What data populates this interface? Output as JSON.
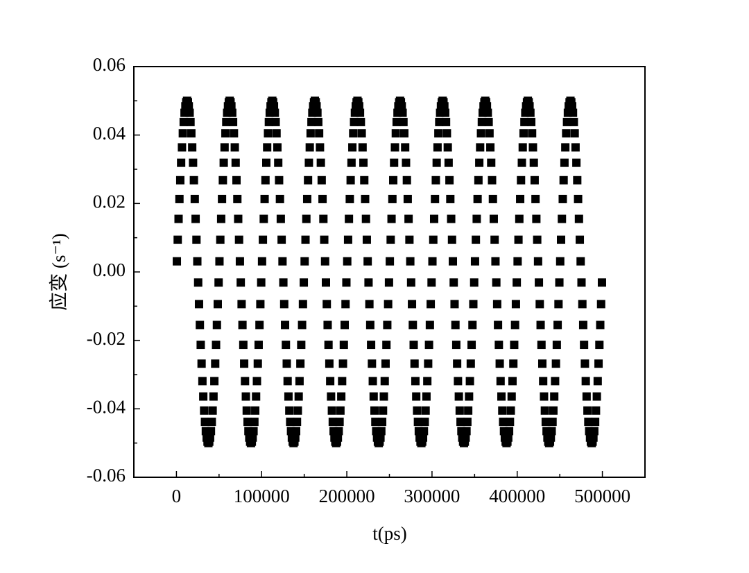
{
  "chart_data": {
    "type": "scatter",
    "x_label": "t(ps)",
    "y_label": "应变 (s⁻¹)",
    "xlim": [
      -50000,
      550000
    ],
    "ylim": [
      -0.06,
      0.06
    ],
    "xticks": [
      0,
      100000,
      200000,
      300000,
      400000,
      500000
    ],
    "yticks": [
      -0.06,
      -0.04,
      -0.02,
      {
        "value": 0,
        "label": "0.00"
      },
      0.02,
      0.04,
      0.06
    ],
    "xminorticks": [
      50000,
      150000,
      250000,
      350000,
      450000
    ],
    "yminorticks": [
      -0.05,
      -0.03,
      -0.01,
      0.01,
      0.03,
      0.05
    ],
    "series": [
      {
        "color": "#000000",
        "x": [
          500,
          1500,
          2500,
          3500,
          4500,
          5500,
          6500,
          7500,
          8500,
          9500,
          10500,
          11500,
          12500,
          13500,
          14500,
          15500,
          16500,
          17500,
          18500,
          19500,
          20500,
          21500,
          22500,
          23500,
          24500,
          25500,
          26500,
          27500,
          28500,
          29500,
          30500,
          31500,
          32500,
          33500,
          34500,
          35500,
          36500,
          37500,
          38500,
          39500,
          40500,
          41500,
          42500,
          43500,
          44500,
          45500,
          46500,
          47500,
          48500,
          49500,
          50500,
          51500,
          52500,
          53500,
          54500,
          55500,
          56500,
          57500,
          58500,
          59500,
          60500,
          61500,
          62500,
          63500,
          64500,
          65500,
          66500,
          67500,
          68500,
          69500,
          70500,
          71500,
          72500,
          73500,
          74500,
          75500,
          76500,
          77500,
          78500,
          79500,
          80500,
          81500,
          82500,
          83500,
          84500,
          85500,
          86500,
          87500,
          88500,
          89500,
          90500,
          91500,
          92500,
          93500,
          94500,
          95500,
          96500,
          97500,
          98500,
          99500,
          100500,
          101500,
          102500,
          103500,
          104500,
          105500,
          106500,
          107500,
          108500,
          109500,
          110500,
          111500,
          112500,
          113500,
          114500,
          115500,
          116500,
          117500,
          118500,
          119500,
          120500,
          121500,
          122500,
          123500,
          124500,
          125500,
          126500,
          127500,
          128500,
          129500,
          130500,
          131500,
          132500,
          133500,
          134500,
          135500,
          136500,
          137500,
          138500,
          139500,
          140500,
          141500,
          142500,
          143500,
          144500,
          145500,
          146500,
          147500,
          148500,
          149500,
          150500,
          151500,
          152500,
          153500,
          154500,
          155500,
          156500,
          157500,
          158500,
          159500,
          160500,
          161500,
          162500,
          163500,
          164500,
          165500,
          166500,
          167500,
          168500,
          169500,
          170500,
          171500,
          172500,
          173500,
          174500,
          175500,
          176500,
          177500,
          178500,
          179500,
          180500,
          181500,
          182500,
          183500,
          184500,
          185500,
          186500,
          187500,
          188500,
          189500,
          190500,
          191500,
          192500,
          193500,
          194500,
          195500,
          196500,
          197500,
          198500,
          199500,
          200500,
          201500,
          202500,
          203500,
          204500,
          205500,
          206500,
          207500,
          208500,
          209500,
          210500,
          211500,
          212500,
          213500,
          214500,
          215500,
          216500,
          217500,
          218500,
          219500,
          220500,
          221500,
          222500,
          223500,
          224500,
          225500,
          226500,
          227500,
          228500,
          229500,
          230500,
          231500,
          232500,
          233500,
          234500,
          235500,
          236500,
          237500,
          238500,
          239500,
          240500,
          241500,
          242500,
          243500,
          244500,
          245500,
          246500,
          247500,
          248500,
          249500,
          250500,
          251500,
          252500,
          253500,
          254500,
          255500,
          256500,
          257500,
          258500,
          259500,
          260500,
          261500,
          262500,
          263500,
          264500,
          265500,
          266500,
          267500,
          268500,
          269500,
          270500,
          271500,
          272500,
          273500,
          274500,
          275500,
          276500,
          277500,
          278500,
          279500,
          280500,
          281500,
          282500,
          283500,
          284500,
          285500,
          286500,
          287500,
          288500,
          289500,
          290500,
          291500,
          292500,
          293500,
          294500,
          295500,
          296500,
          297500,
          298500,
          299500,
          300500,
          301500,
          302500,
          303500,
          304500,
          305500,
          306500,
          307500,
          308500,
          309500,
          310500,
          311500,
          312500,
          313500,
          314500,
          315500,
          316500,
          317500,
          318500,
          319500,
          320500,
          321500,
          322500,
          323500,
          324500,
          325500,
          326500,
          327500,
          328500,
          329500,
          330500,
          331500,
          332500,
          333500,
          334500,
          335500,
          336500,
          337500,
          338500,
          339500,
          340500,
          341500,
          342500,
          343500,
          344500,
          345500,
          346500,
          347500,
          348500,
          349500,
          350500,
          351500,
          352500,
          353500,
          354500,
          355500,
          356500,
          357500,
          358500,
          359500,
          360500,
          361500,
          362500,
          363500,
          364500,
          365500,
          366500,
          367500,
          368500,
          369500,
          370500,
          371500,
          372500,
          373500,
          374500,
          375500,
          376500,
          377500,
          378500,
          379500,
          380500,
          381500,
          382500,
          383500,
          384500,
          385500,
          386500,
          387500,
          388500,
          389500,
          390500,
          391500,
          392500,
          393500,
          394500,
          395500,
          396500,
          397500,
          398500,
          399500,
          400500,
          401500,
          402500,
          403500,
          404500,
          405500,
          406500,
          407500,
          408500,
          409500,
          410500,
          411500,
          412500,
          413500,
          414500,
          415500,
          416500,
          417500,
          418500,
          419500,
          420500,
          421500,
          422500,
          423500,
          424500,
          425500,
          426500,
          427500,
          428500,
          429500,
          430500,
          431500,
          432500,
          433500,
          434500,
          435500,
          436500,
          437500,
          438500,
          439500,
          440500,
          441500,
          442500,
          443500,
          444500,
          445500,
          446500,
          447500,
          448500,
          449500,
          450500,
          451500,
          452500,
          453500,
          454500,
          455500,
          456500,
          457500,
          458500,
          459500,
          460500,
          461500,
          462500,
          463500,
          464500,
          465500,
          466500,
          467500,
          468500,
          469500,
          470500,
          471500,
          472500,
          473500,
          474500,
          475500,
          476500,
          477500,
          478500,
          479500,
          480500,
          481500,
          482500,
          483500,
          484500,
          485500,
          486500,
          487500,
          488500,
          489500,
          490500,
          491500,
          492500,
          493500,
          494500,
          495500,
          496500,
          497500,
          498500,
          499500
        ],
        "values": [
          0.0031,
          0.0094,
          0.0155,
          0.0213,
          0.0268,
          0.0319,
          0.0364,
          0.0405,
          0.0438,
          0.0465,
          0.0484,
          0.0496,
          0.05,
          0.0496,
          0.0484,
          0.0465,
          0.0438,
          0.0405,
          0.0364,
          0.0319,
          0.0268,
          0.0213,
          0.0155,
          0.0094,
          0.0031,
          -0.0031,
          -0.0094,
          -0.0155,
          -0.0213,
          -0.0268,
          -0.0319,
          -0.0364,
          -0.0405,
          -0.0438,
          -0.0465,
          -0.0484,
          -0.0496,
          -0.05,
          -0.0496,
          -0.0484,
          -0.0465,
          -0.0438,
          -0.0405,
          -0.0364,
          -0.0319,
          -0.0268,
          -0.0213,
          -0.0155,
          -0.0094,
          -0.0031,
          0.0031,
          0.0094,
          0.0155,
          0.0213,
          0.0268,
          0.0319,
          0.0364,
          0.0405,
          0.0438,
          0.0465,
          0.0484,
          0.0496,
          0.05,
          0.0496,
          0.0484,
          0.0465,
          0.0438,
          0.0405,
          0.0364,
          0.0319,
          0.0268,
          0.0213,
          0.0155,
          0.0094,
          0.0031,
          -0.0031,
          -0.0094,
          -0.0155,
          -0.0213,
          -0.0268,
          -0.0319,
          -0.0364,
          -0.0405,
          -0.0438,
          -0.0465,
          -0.0484,
          -0.0496,
          -0.05,
          -0.0496,
          -0.0484,
          -0.0465,
          -0.0438,
          -0.0405,
          -0.0364,
          -0.0319,
          -0.0268,
          -0.0213,
          -0.0155,
          -0.0094,
          -0.0031,
          0.0031,
          0.0094,
          0.0155,
          0.0213,
          0.0268,
          0.0319,
          0.0364,
          0.0405,
          0.0438,
          0.0465,
          0.0484,
          0.0496,
          0.05,
          0.0496,
          0.0484,
          0.0465,
          0.0438,
          0.0405,
          0.0364,
          0.0319,
          0.0268,
          0.0213,
          0.0155,
          0.0094,
          0.0031,
          -0.0031,
          -0.0094,
          -0.0155,
          -0.0213,
          -0.0268,
          -0.0319,
          -0.0364,
          -0.0405,
          -0.0438,
          -0.0465,
          -0.0484,
          -0.0496,
          -0.05,
          -0.0496,
          -0.0484,
          -0.0465,
          -0.0438,
          -0.0405,
          -0.0364,
          -0.0319,
          -0.0268,
          -0.0213,
          -0.0155,
          -0.0094,
          -0.0031,
          0.0031,
          0.0094,
          0.0155,
          0.0213,
          0.0268,
          0.0319,
          0.0364,
          0.0405,
          0.0438,
          0.0465,
          0.0484,
          0.0496,
          0.05,
          0.0496,
          0.0484,
          0.0465,
          0.0438,
          0.0405,
          0.0364,
          0.0319,
          0.0268,
          0.0213,
          0.0155,
          0.0094,
          0.0031,
          -0.0031,
          -0.0094,
          -0.0155,
          -0.0213,
          -0.0268,
          -0.0319,
          -0.0364,
          -0.0405,
          -0.0438,
          -0.0465,
          -0.0484,
          -0.0496,
          -0.05,
          -0.0496,
          -0.0484,
          -0.0465,
          -0.0438,
          -0.0405,
          -0.0364,
          -0.0319,
          -0.0268,
          -0.0213,
          -0.0155,
          -0.0094,
          -0.0031,
          0.0031,
          0.0094,
          0.0155,
          0.0213,
          0.0268,
          0.0319,
          0.0364,
          0.0405,
          0.0438,
          0.0465,
          0.0484,
          0.0496,
          0.05,
          0.0496,
          0.0484,
          0.0465,
          0.0438,
          0.0405,
          0.0364,
          0.0319,
          0.0268,
          0.0213,
          0.0155,
          0.0094,
          0.0031,
          -0.0031,
          -0.0094,
          -0.0155,
          -0.0213,
          -0.0268,
          -0.0319,
          -0.0364,
          -0.0405,
          -0.0438,
          -0.0465,
          -0.0484,
          -0.0496,
          -0.05,
          -0.0496,
          -0.0484,
          -0.0465,
          -0.0438,
          -0.0405,
          -0.0364,
          -0.0319,
          -0.0268,
          -0.0213,
          -0.0155,
          -0.0094,
          -0.0031,
          0.0031,
          0.0094,
          0.0155,
          0.0213,
          0.0268,
          0.0319,
          0.0364,
          0.0405,
          0.0438,
          0.0465,
          0.0484,
          0.0496,
          0.05,
          0.0496,
          0.0484,
          0.0465,
          0.0438,
          0.0405,
          0.0364,
          0.0319,
          0.0268,
          0.0213,
          0.0155,
          0.0094,
          0.0031,
          -0.0031,
          -0.0094,
          -0.0155,
          -0.0213,
          -0.0268,
          -0.0319,
          -0.0364,
          -0.0405,
          -0.0438,
          -0.0465,
          -0.0484,
          -0.0496,
          -0.05,
          -0.0496,
          -0.0484,
          -0.0465,
          -0.0438,
          -0.0405,
          -0.0364,
          -0.0319,
          -0.0268,
          -0.0213,
          -0.0155,
          -0.0094,
          -0.0031,
          0.0031,
          0.0094,
          0.0155,
          0.0213,
          0.0268,
          0.0319,
          0.0364,
          0.0405,
          0.0438,
          0.0465,
          0.0484,
          0.0496,
          0.05,
          0.0496,
          0.0484,
          0.0465,
          0.0438,
          0.0405,
          0.0364,
          0.0319,
          0.0268,
          0.0213,
          0.0155,
          0.0094,
          0.0031,
          -0.0031,
          -0.0094,
          -0.0155,
          -0.0213,
          -0.0268,
          -0.0319,
          -0.0364,
          -0.0405,
          -0.0438,
          -0.0465,
          -0.0484,
          -0.0496,
          -0.05,
          -0.0496,
          -0.0484,
          -0.0465,
          -0.0438,
          -0.0405,
          -0.0364,
          -0.0319,
          -0.0268,
          -0.0213,
          -0.0155,
          -0.0094,
          -0.0031,
          0.0031,
          0.0094,
          0.0155,
          0.0213,
          0.0268,
          0.0319,
          0.0364,
          0.0405,
          0.0438,
          0.0465,
          0.0484,
          0.0496,
          0.05,
          0.0496,
          0.0484,
          0.0465,
          0.0438,
          0.0405,
          0.0364,
          0.0319,
          0.0268,
          0.0213,
          0.0155,
          0.0094,
          0.0031,
          -0.0031,
          -0.0094,
          -0.0155,
          -0.0213,
          -0.0268,
          -0.0319,
          -0.0364,
          -0.0405,
          -0.0438,
          -0.0465,
          -0.0484,
          -0.0496,
          -0.05,
          -0.0496,
          -0.0484,
          -0.0465,
          -0.0438,
          -0.0405,
          -0.0364,
          -0.0319,
          -0.0268,
          -0.0213,
          -0.0155,
          -0.0094,
          -0.0031,
          0.0031,
          0.0094,
          0.0155,
          0.0213,
          0.0268,
          0.0319,
          0.0364,
          0.0405,
          0.0438,
          0.0465,
          0.0484,
          0.0496,
          0.05,
          0.0496,
          0.0484,
          0.0465,
          0.0438,
          0.0405,
          0.0364,
          0.0319,
          0.0268,
          0.0213,
          0.0155,
          0.0094,
          0.0031,
          -0.0031,
          -0.0094,
          -0.0155,
          -0.0213,
          -0.0268,
          -0.0319,
          -0.0364,
          -0.0405,
          -0.0438,
          -0.0465,
          -0.0484,
          -0.0496,
          -0.05,
          -0.0496,
          -0.0484,
          -0.0465,
          -0.0438,
          -0.0405,
          -0.0364,
          -0.0319,
          -0.0268,
          -0.0213,
          -0.0155,
          -0.0094,
          -0.0031,
          0.0031,
          0.0094,
          0.0155,
          0.0213,
          0.0268,
          0.0319,
          0.0364,
          0.0405,
          0.0438,
          0.0465,
          0.0484,
          0.0496,
          0.05,
          0.0496,
          0.0484,
          0.0465,
          0.0438,
          0.0405,
          0.0364,
          0.0319,
          0.0268,
          0.0213,
          0.0155,
          0.0094,
          0.0031,
          -0.0031,
          -0.0094,
          -0.0155,
          -0.0213,
          -0.0268,
          -0.0319,
          -0.0364,
          -0.0405,
          -0.0438,
          -0.0465,
          -0.0484,
          -0.0496,
          -0.05,
          -0.0496,
          -0.0484,
          -0.0465,
          -0.0438,
          -0.0405,
          -0.0364,
          -0.0319,
          -0.0268,
          -0.0213,
          -0.0155,
          -0.0094,
          -0.0031
        ]
      }
    ]
  }
}
